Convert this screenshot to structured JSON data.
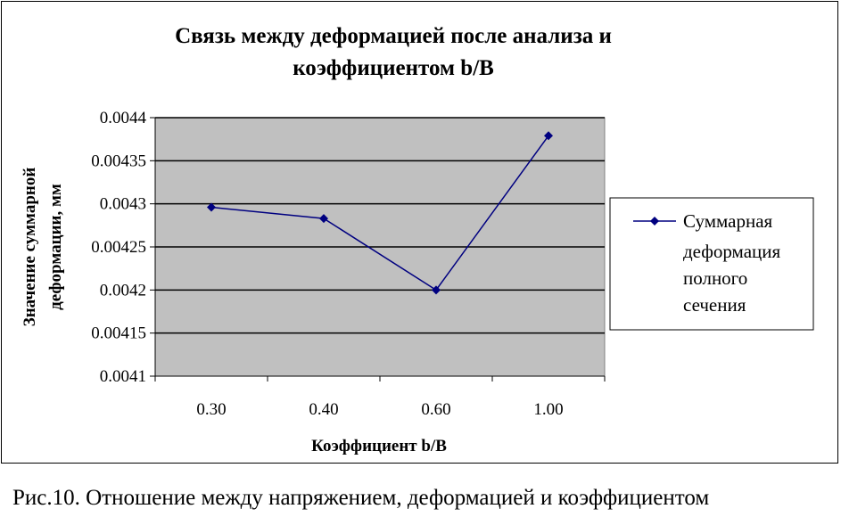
{
  "chart_data": {
    "type": "line",
    "title_lines": [
      "Связь между деформацией после анализа и",
      "коэффициентом b/B"
    ],
    "xlabel": "Коэффициент b/B",
    "ylabel_lines": [
      "Значение суммарной",
      "деформации, мм"
    ],
    "categories": [
      "0.30",
      "0.40",
      "0.60",
      "1.00"
    ],
    "yticks": [
      "0.0041",
      "0.00415",
      "0.0042",
      "0.00425",
      "0.0043",
      "0.00435",
      "0.0044"
    ],
    "ylim": [
      0.0041,
      0.0044
    ],
    "series": [
      {
        "name_lines": [
          "Суммарная",
          "деформация",
          "полного",
          "сечения"
        ],
        "values": [
          0.004296,
          0.004283,
          0.0042,
          0.004379
        ]
      }
    ],
    "grid": true,
    "legend_position": "right",
    "colors": {
      "series": "#000080",
      "plot_bg": "#c0c0c0"
    }
  },
  "caption": "Рис.10. Отношение между напряжением, деформацией и коэффициентом"
}
